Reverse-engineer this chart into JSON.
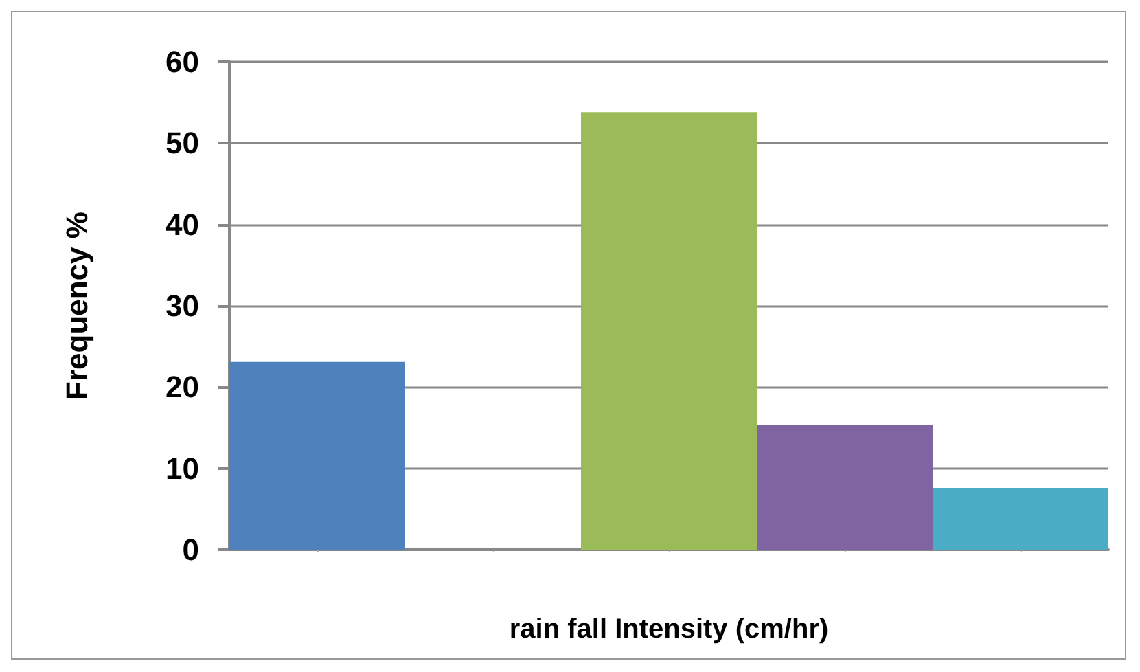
{
  "chart_data": {
    "type": "bar",
    "xlabel": "rain fall Intensity (cm/hr)",
    "ylabel": "Frequency %",
    "categories": [
      null,
      null,
      null,
      null,
      null
    ],
    "values": [
      23.1,
      null,
      53.8,
      15.3,
      7.6
    ],
    "colors": [
      "#4f81bd",
      "#4f81bd",
      "#9bbb59",
      "#8064a2",
      "#4bacc6"
    ],
    "ylim": [
      0,
      60
    ],
    "yticks": [
      0,
      10,
      20,
      30,
      40,
      50,
      60
    ],
    "grid": "y"
  }
}
